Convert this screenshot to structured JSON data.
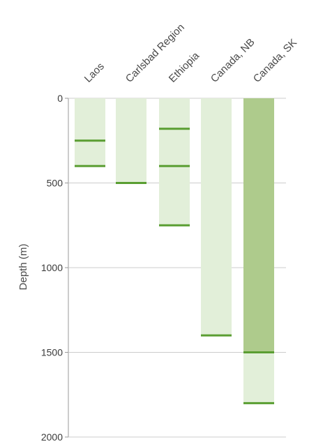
{
  "chart_data": {
    "type": "bar",
    "title": "",
    "xlabel": "",
    "ylabel": "Depth (m)",
    "ylim": [
      0,
      2000
    ],
    "yticks": [
      0,
      500,
      1000,
      1500,
      2000
    ],
    "y_axis_inverted": true,
    "grid": true,
    "categories": [
      "Laos",
      "Carlsbad Region",
      "Ethiopia",
      "Canada, NB",
      "Canada, SK"
    ],
    "bars": [
      {
        "category": "Laos",
        "range": [
          0,
          400
        ],
        "markers": [
          250,
          400
        ]
      },
      {
        "category": "Carlsbad Region",
        "range": [
          0,
          500
        ],
        "markers": [
          500
        ]
      },
      {
        "category": "Ethiopia",
        "range": [
          0,
          750
        ],
        "markers": [
          180,
          400,
          750
        ]
      },
      {
        "category": "Canada, NB",
        "range": [
          0,
          1400
        ],
        "markers": [
          1400
        ]
      },
      {
        "category": "Canada, SK",
        "range": [
          0,
          1800
        ],
        "dark_range": [
          0,
          1500
        ],
        "markers": [
          1500,
          1800
        ]
      }
    ],
    "colors": {
      "light_fill": "#e2efd9",
      "dark_fill": "#aecb8c",
      "marker": "#5a9e32",
      "grid": "#cccccc",
      "axis": "#999999"
    }
  }
}
